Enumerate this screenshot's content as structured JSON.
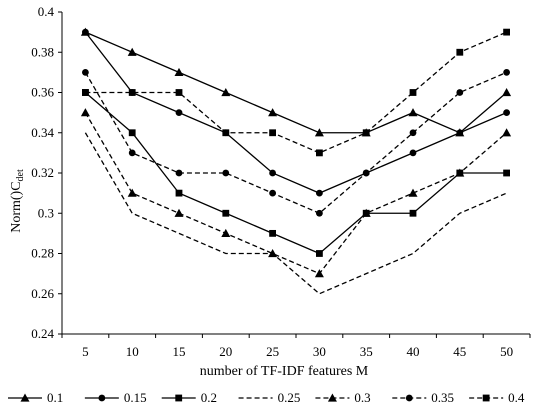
{
  "chart_data": {
    "type": "line",
    "title": "",
    "xlabel": "number of TF-IDF features M",
    "ylabel_main": "Norm()C",
    "ylabel_sub": "det",
    "categories": [
      5,
      10,
      15,
      20,
      25,
      30,
      35,
      40,
      45,
      50
    ],
    "ylim": [
      0.24,
      0.4
    ],
    "yticks": [
      "0.24",
      "0.26",
      "0.28",
      "0.3",
      "0.32",
      "0.34",
      "0.36",
      "0.38",
      "0.4"
    ],
    "grid": false,
    "legend_position": "bottom",
    "series": [
      {
        "name": "0.1",
        "line": "solid",
        "marker": "triangle",
        "values": [
          0.39,
          0.38,
          0.37,
          0.36,
          0.35,
          0.34,
          0.34,
          0.35,
          0.34,
          0.36
        ]
      },
      {
        "name": "0.15",
        "line": "solid",
        "marker": "circle",
        "values": [
          0.39,
          0.36,
          0.35,
          0.34,
          0.32,
          0.31,
          0.32,
          0.33,
          0.34,
          0.35
        ]
      },
      {
        "name": "0.2",
        "line": "solid",
        "marker": "square",
        "values": [
          0.36,
          0.34,
          0.31,
          0.3,
          0.29,
          0.28,
          0.3,
          0.3,
          0.32,
          0.32
        ]
      },
      {
        "name": "0.25",
        "line": "dashed",
        "marker": "none",
        "values": [
          0.34,
          0.3,
          0.29,
          0.28,
          0.28,
          0.26,
          0.27,
          0.28,
          0.3,
          0.31
        ]
      },
      {
        "name": "0.3",
        "line": "dashed",
        "marker": "triangle",
        "values": [
          0.35,
          0.31,
          0.3,
          0.29,
          0.28,
          0.27,
          0.3,
          0.31,
          0.32,
          0.34
        ]
      },
      {
        "name": "0.35",
        "line": "dashed",
        "marker": "circle",
        "values": [
          0.37,
          0.33,
          0.32,
          0.32,
          0.31,
          0.3,
          0.32,
          0.34,
          0.36,
          0.37
        ]
      },
      {
        "name": "0.4",
        "line": "dashed",
        "marker": "square",
        "values": [
          0.36,
          0.36,
          0.36,
          0.34,
          0.34,
          0.33,
          0.34,
          0.36,
          0.38,
          0.39
        ]
      }
    ]
  }
}
